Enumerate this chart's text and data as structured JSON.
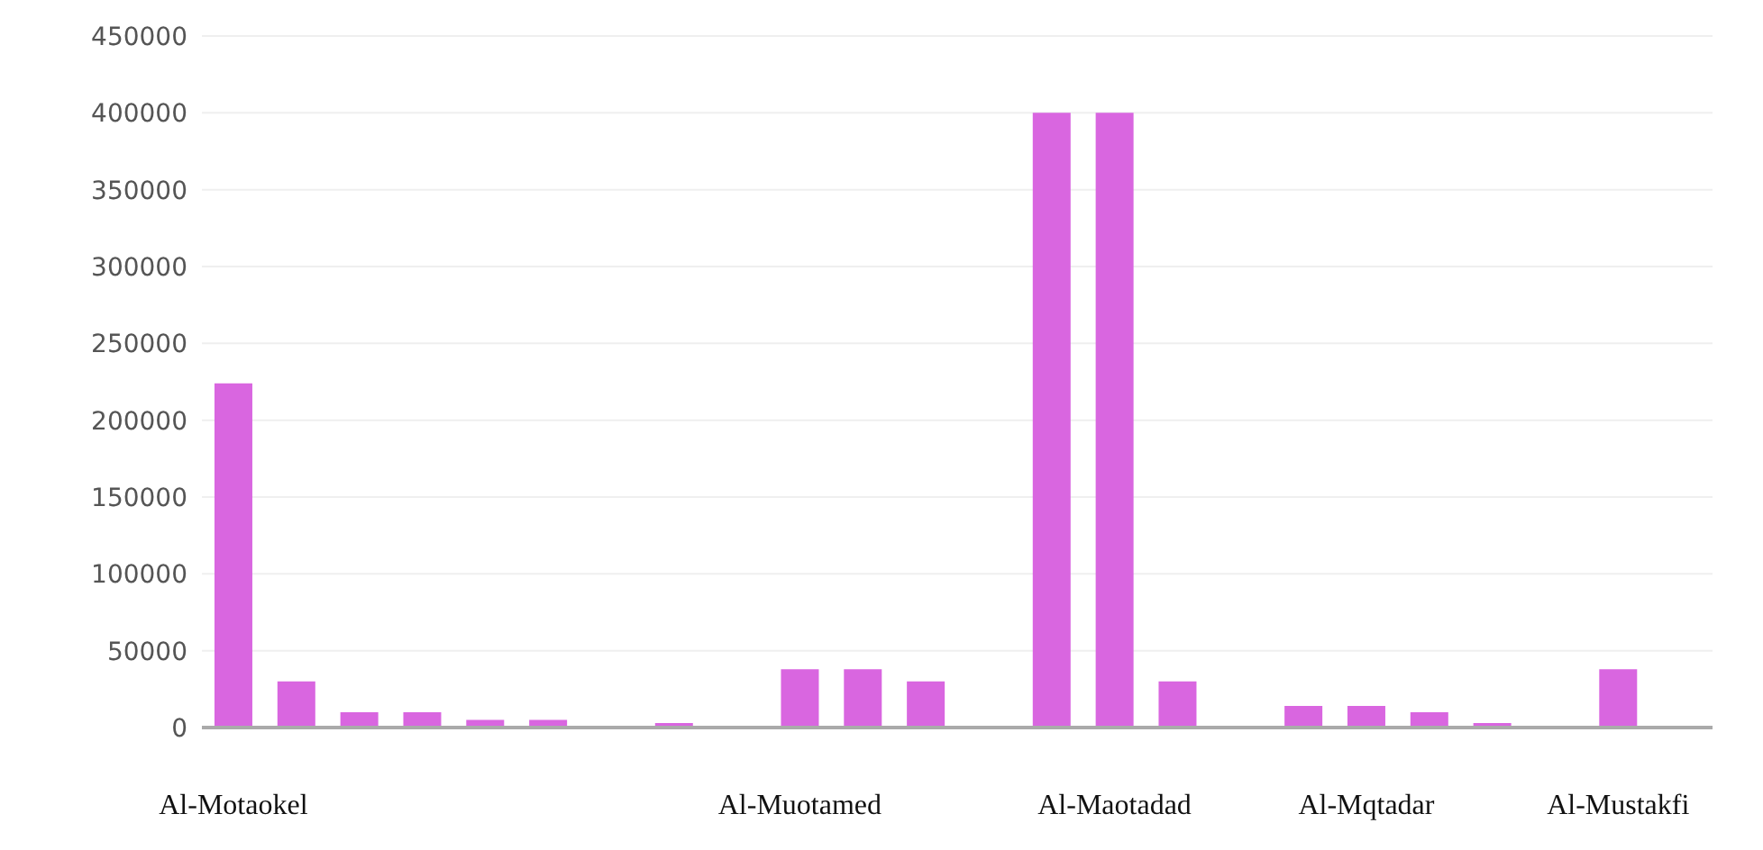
{
  "chart_data": {
    "type": "bar",
    "categories": [
      "Al-Motaokel",
      null,
      null,
      null,
      null,
      null,
      null,
      null,
      null,
      "Al-Muotamed",
      null,
      null,
      null,
      null,
      "Al-Maotadad",
      null,
      null,
      null,
      "Al-Mqtadar",
      null,
      null,
      null,
      "Al-Mustakfi",
      null
    ],
    "values": [
      224000,
      30000,
      10000,
      10000,
      5000,
      5000,
      1000,
      3000,
      null,
      38000,
      38000,
      30000,
      null,
      400000,
      400000,
      30000,
      null,
      14000,
      14000,
      10000,
      3000,
      null,
      38000,
      null
    ],
    "color": "#d966e0",
    "ylim": [
      0,
      450000
    ],
    "yticks": [
      0,
      50000,
      100000,
      150000,
      200000,
      250000,
      300000,
      350000,
      400000,
      450000
    ],
    "grid": "y",
    "legend": false
  }
}
